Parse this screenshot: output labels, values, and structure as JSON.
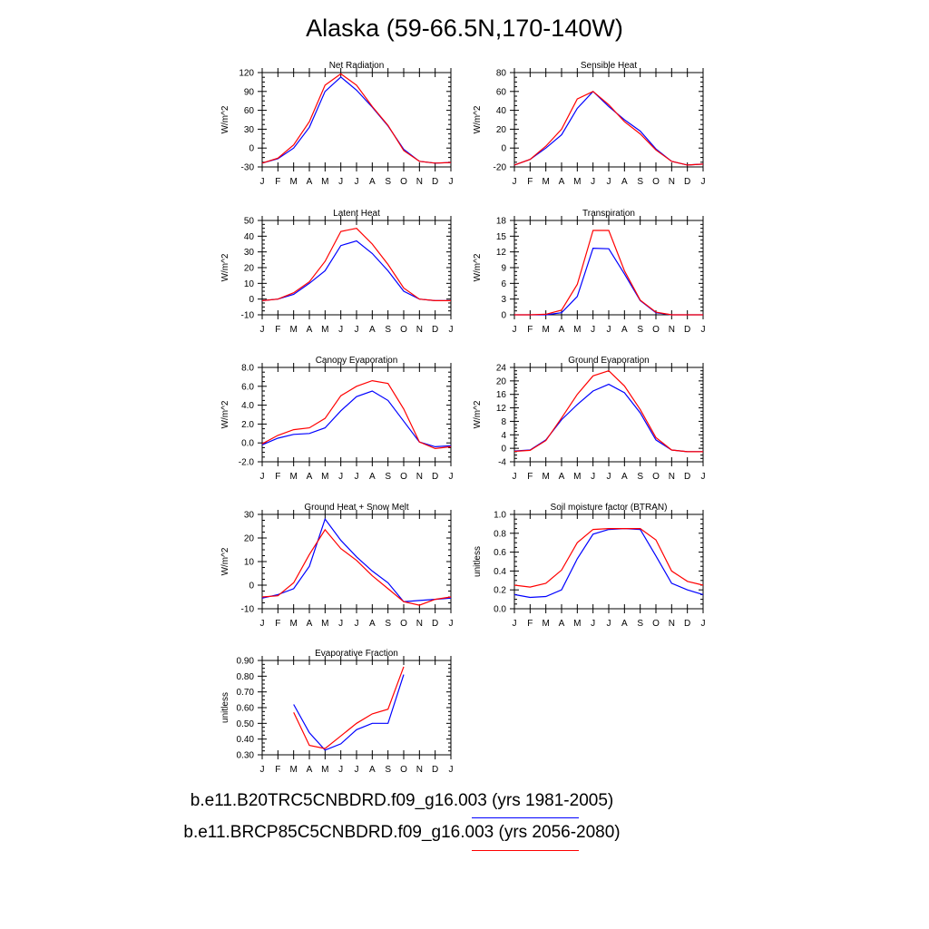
{
  "title": "Alaska (59-66.5N,170-140W)",
  "colors": {
    "series_1": "#0000ff",
    "series_2": "#ff0000"
  },
  "legend": {
    "series_1": "b.e11.B20TRC5CNBDRD.f09_g16.003 (yrs 1981-2005)",
    "series_2": "b.e11.BRCP85C5CNBDRD.f09_g16.003 (yrs 2056-2080)"
  },
  "chart_data": [
    {
      "type": "line",
      "title": "Net Radiation",
      "ylabel": "W/m^2",
      "x": [
        "J",
        "F",
        "M",
        "A",
        "M",
        "J",
        "J",
        "A",
        "S",
        "O",
        "N",
        "D",
        "J"
      ],
      "ylim": [
        -30,
        120
      ],
      "yticks": [
        -30,
        0,
        30,
        60,
        90,
        120
      ],
      "ytick_labels": [
        "-30",
        "0",
        "30",
        "60",
        "90",
        "120"
      ],
      "series": [
        {
          "values": [
            -24,
            -17,
            0,
            33,
            90,
            113,
            92,
            65,
            35,
            -2,
            -21,
            -24,
            -23
          ]
        },
        {
          "values": [
            -24,
            -16,
            5,
            42,
            100,
            118,
            100,
            66,
            36,
            -4,
            -21,
            -24,
            -23
          ]
        }
      ]
    },
    {
      "type": "line",
      "title": "Sensible Heat",
      "ylabel": "W/m^2",
      "x": [
        "J",
        "F",
        "M",
        "A",
        "M",
        "J",
        "J",
        "A",
        "S",
        "O",
        "N",
        "D",
        "J"
      ],
      "ylim": [
        -20,
        80
      ],
      "yticks": [
        -20,
        0,
        20,
        40,
        60,
        80
      ],
      "ytick_labels": [
        "-20",
        "0",
        "20",
        "40",
        "60",
        "80"
      ],
      "series": [
        {
          "values": [
            -18,
            -12,
            0,
            14,
            42,
            60,
            44,
            30,
            18,
            -1,
            -14,
            -18,
            -17
          ]
        },
        {
          "values": [
            -18,
            -12,
            2,
            20,
            52,
            60,
            46,
            28,
            15,
            -2,
            -14,
            -18,
            -17
          ]
        }
      ]
    },
    {
      "type": "line",
      "title": "Latent Heat",
      "ylabel": "W/m^2",
      "x": [
        "J",
        "F",
        "M",
        "A",
        "M",
        "J",
        "J",
        "A",
        "S",
        "O",
        "N",
        "D",
        "J"
      ],
      "ylim": [
        -10,
        50
      ],
      "yticks": [
        -10,
        0,
        10,
        20,
        30,
        40,
        50
      ],
      "ytick_labels": [
        "-10",
        "0",
        "10",
        "20",
        "30",
        "40",
        "50"
      ],
      "series": [
        {
          "values": [
            -1,
            0,
            3,
            10,
            18,
            34,
            37,
            29,
            18,
            5,
            0,
            -1,
            -1
          ]
        },
        {
          "values": [
            -1,
            0,
            4,
            11,
            24,
            43,
            45,
            35,
            22,
            7,
            0,
            -1,
            -1
          ]
        }
      ]
    },
    {
      "type": "line",
      "title": "Transpiration",
      "ylabel": "W/m^2",
      "x": [
        "J",
        "F",
        "M",
        "A",
        "M",
        "J",
        "J",
        "A",
        "S",
        "O",
        "N",
        "D",
        "J"
      ],
      "ylim": [
        0,
        18
      ],
      "yticks": [
        0,
        3,
        6,
        9,
        12,
        15,
        18
      ],
      "ytick_labels": [
        "0",
        "3",
        "6",
        "9",
        "12",
        "15",
        "18"
      ],
      "series": [
        {
          "values": [
            0,
            0,
            0,
            0.4,
            3.5,
            12.7,
            12.6,
            7.8,
            2.7,
            0.4,
            0,
            0,
            0
          ]
        },
        {
          "values": [
            0,
            0,
            0.1,
            0.9,
            5.8,
            16.1,
            16.1,
            8.4,
            2.8,
            0.5,
            0,
            0,
            0
          ]
        }
      ]
    },
    {
      "type": "line",
      "title": "Canopy Evaporation",
      "ylabel": "W/m^2",
      "x": [
        "J",
        "F",
        "M",
        "A",
        "M",
        "J",
        "J",
        "A",
        "S",
        "O",
        "N",
        "D",
        "J"
      ],
      "ylim": [
        -2,
        8
      ],
      "yticks": [
        -2,
        0,
        2,
        4,
        6,
        8
      ],
      "ytick_labels": [
        "-2.0",
        "0.0",
        "2.0",
        "4.0",
        "6.0",
        "8.0"
      ],
      "series": [
        {
          "values": [
            -0.2,
            0.5,
            0.9,
            1.0,
            1.6,
            3.4,
            4.9,
            5.5,
            4.5,
            2.3,
            0.1,
            -0.4,
            -0.3
          ]
        },
        {
          "values": [
            -0.1,
            0.8,
            1.4,
            1.6,
            2.6,
            5.0,
            6.0,
            6.6,
            6.3,
            3.6,
            0.1,
            -0.6,
            -0.4
          ]
        }
      ]
    },
    {
      "type": "line",
      "title": "Ground Evaporation",
      "ylabel": "W/m^2",
      "x": [
        "J",
        "F",
        "M",
        "A",
        "M",
        "J",
        "J",
        "A",
        "S",
        "O",
        "N",
        "D",
        "J"
      ],
      "ylim": [
        -4,
        24
      ],
      "yticks": [
        -4,
        0,
        4,
        8,
        12,
        16,
        20,
        24
      ],
      "ytick_labels": [
        "-4",
        "0",
        "4",
        "8",
        "12",
        "16",
        "20",
        "24"
      ],
      "series": [
        {
          "values": [
            -0.8,
            -0.5,
            2.5,
            8.5,
            13,
            17,
            19,
            16.5,
            10.5,
            2.5,
            -0.5,
            -1,
            -1
          ]
        },
        {
          "values": [
            -0.9,
            -0.6,
            2.3,
            9,
            16,
            21.5,
            23,
            18.5,
            11.5,
            3.2,
            -0.5,
            -1,
            -1
          ]
        }
      ]
    },
    {
      "type": "line",
      "title": "Ground Heat + Snow Melt",
      "ylabel": "W/m^2",
      "x": [
        "J",
        "F",
        "M",
        "A",
        "M",
        "J",
        "J",
        "A",
        "S",
        "O",
        "N",
        "D",
        "J"
      ],
      "ylim": [
        -10,
        30
      ],
      "yticks": [
        -10,
        0,
        10,
        20,
        30
      ],
      "ytick_labels": [
        "-10",
        "0",
        "10",
        "20",
        "30"
      ],
      "series": [
        {
          "values": [
            -5.5,
            -4,
            -1.5,
            8,
            28,
            19,
            12,
            6,
            1,
            -7,
            -6.5,
            -6,
            -5.5
          ]
        },
        {
          "values": [
            -5,
            -4.5,
            1,
            13,
            23.5,
            15.5,
            10.5,
            4,
            -1.5,
            -7,
            -8.5,
            -6,
            -5
          ]
        }
      ]
    },
    {
      "type": "line",
      "title": "Soil moisture factor (BTRAN)",
      "ylabel": "unitless",
      "x": [
        "J",
        "F",
        "M",
        "A",
        "M",
        "J",
        "J",
        "A",
        "S",
        "O",
        "N",
        "D",
        "J"
      ],
      "ylim": [
        0,
        1
      ],
      "yticks": [
        0,
        0.2,
        0.4,
        0.6,
        0.8,
        1.0
      ],
      "ytick_labels": [
        "0.0",
        "0.2",
        "0.4",
        "0.6",
        "0.8",
        "1.0"
      ],
      "series": [
        {
          "values": [
            0.15,
            0.12,
            0.13,
            0.2,
            0.53,
            0.79,
            0.84,
            0.85,
            0.84,
            0.56,
            0.27,
            0.2,
            0.15
          ]
        },
        {
          "values": [
            0.25,
            0.23,
            0.27,
            0.41,
            0.7,
            0.84,
            0.85,
            0.85,
            0.85,
            0.73,
            0.4,
            0.29,
            0.25
          ]
        }
      ]
    },
    {
      "type": "line",
      "title": "Evaporative Fraction",
      "ylabel": "unitless",
      "x": [
        "J",
        "F",
        "M",
        "A",
        "M",
        "J",
        "J",
        "A",
        "S",
        "O",
        "N",
        "D",
        "J"
      ],
      "ylim": [
        0.3,
        0.9
      ],
      "yticks": [
        0.3,
        0.4,
        0.5,
        0.6,
        0.7,
        0.8,
        0.9
      ],
      "ytick_labels": [
        "0.30",
        "0.40",
        "0.50",
        "0.60",
        "0.70",
        "0.80",
        "0.90"
      ],
      "series": [
        {
          "values": [
            null,
            null,
            0.62,
            0.44,
            0.33,
            0.37,
            0.46,
            0.5,
            0.5,
            0.81,
            null,
            null,
            null
          ]
        },
        {
          "values": [
            null,
            null,
            0.57,
            0.36,
            0.34,
            0.42,
            0.5,
            0.56,
            0.59,
            0.86,
            null,
            null,
            null
          ]
        }
      ]
    }
  ]
}
